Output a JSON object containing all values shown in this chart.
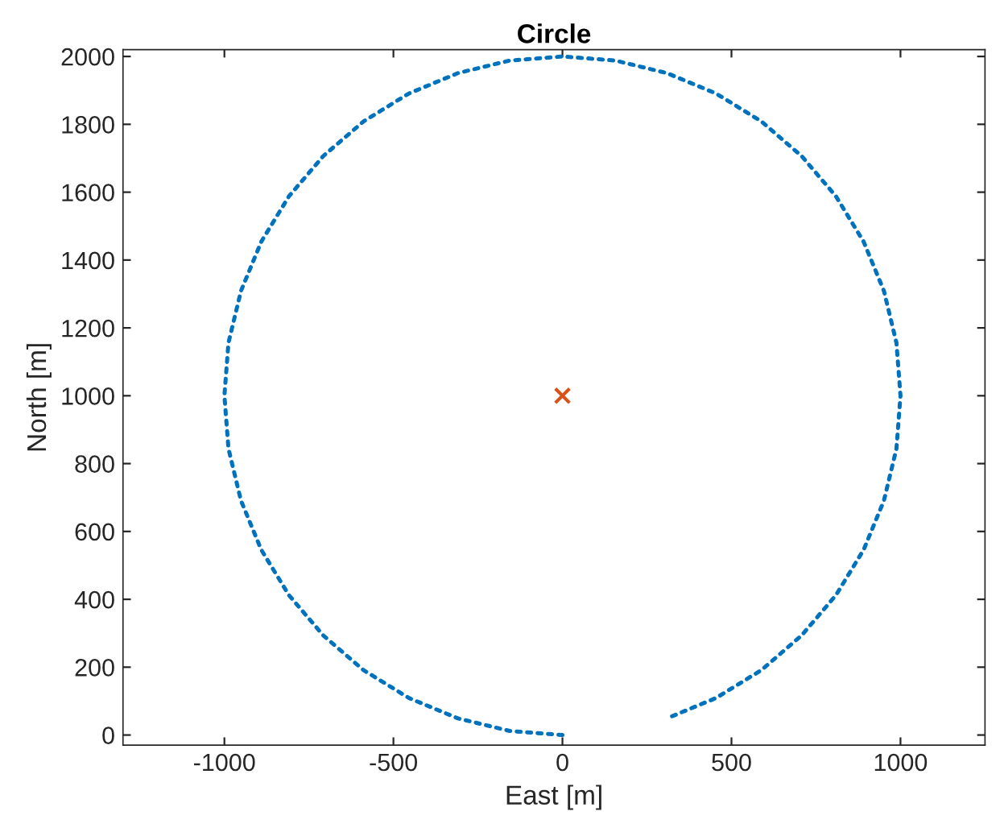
{
  "chart_data": {
    "type": "line",
    "title": "Circle",
    "xlabel": "East [m]",
    "ylabel": "North [m]",
    "xlim": [
      -1300,
      1250
    ],
    "ylim": [
      -30,
      2020
    ],
    "xticks": [
      -1000,
      -500,
      0,
      500,
      1000
    ],
    "yticks": [
      0,
      200,
      400,
      600,
      800,
      1000,
      1200,
      1400,
      1600,
      1800,
      2000
    ],
    "grid": false,
    "legend": false,
    "series": [
      {
        "line_style": "dotted",
        "color": "#0072bd",
        "x": [
          0,
          -156,
          -309,
          -454,
          -588,
          -707,
          -809,
          -891,
          -951,
          -988,
          -1000,
          -988,
          -951,
          -891,
          -809,
          -707,
          -588,
          -454,
          -309,
          -156,
          0,
          156,
          309,
          454,
          588,
          707,
          809,
          891,
          951,
          988,
          1000,
          988,
          951,
          891,
          809,
          707,
          588,
          454,
          309
        ],
        "values": [
          0,
          12,
          49,
          109,
          191,
          293,
          412,
          546,
          691,
          844,
          1000,
          1156,
          1309,
          1454,
          1588,
          1707,
          1809,
          1891,
          1951,
          1988,
          2000,
          1988,
          1951,
          1891,
          1809,
          1707,
          1588,
          1454,
          1309,
          1156,
          1000,
          844,
          691,
          546,
          412,
          293,
          191,
          109,
          49
        ]
      },
      {
        "type": "scatter",
        "marker": "cross",
        "color": "#d95319",
        "x": [
          0
        ],
        "values": [
          1000
        ]
      }
    ]
  }
}
